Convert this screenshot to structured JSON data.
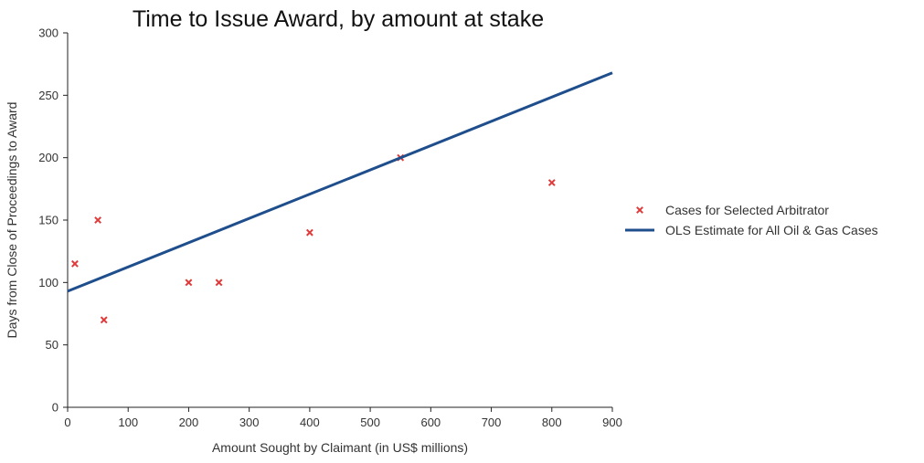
{
  "chart_data": {
    "type": "scatter",
    "title": "Time to Issue Award, by amount at stake",
    "xlabel": "Amount Sought by Claimant (in US$ millions)",
    "ylabel": "Days from Close of Proceedings to Award",
    "xlim": [
      0,
      900
    ],
    "ylim": [
      0,
      300
    ],
    "xticks": [
      0,
      100,
      200,
      300,
      400,
      500,
      600,
      700,
      800,
      900
    ],
    "yticks": [
      0,
      50,
      100,
      150,
      200,
      250,
      300
    ],
    "grid": false,
    "legend_position": "right",
    "series": [
      {
        "name": "Cases for Selected Arbitrator",
        "kind": "scatter",
        "marker": "x",
        "color": "#e03a3a",
        "points": [
          {
            "x": 12,
            "y": 115
          },
          {
            "x": 50,
            "y": 150
          },
          {
            "x": 60,
            "y": 70
          },
          {
            "x": 200,
            "y": 100
          },
          {
            "x": 250,
            "y": 100
          },
          {
            "x": 400,
            "y": 140
          },
          {
            "x": 550,
            "y": 200
          },
          {
            "x": 800,
            "y": 180
          }
        ]
      },
      {
        "name": "OLS Estimate for All Oil & Gas Cases",
        "kind": "line",
        "color": "#1f4e8c",
        "points": [
          {
            "x": 0,
            "y": 93
          },
          {
            "x": 900,
            "y": 268
          }
        ]
      }
    ]
  }
}
